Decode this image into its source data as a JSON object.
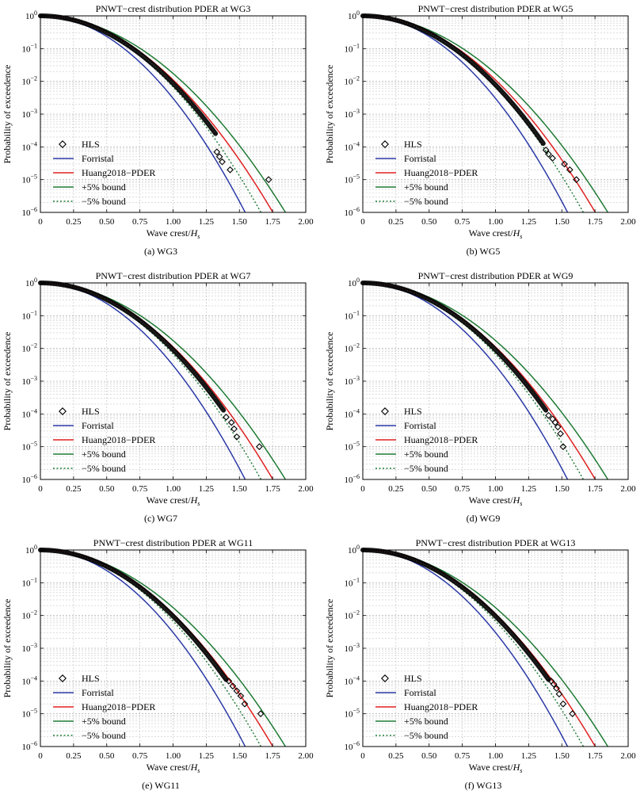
{
  "figure": {
    "ylabel": "Probability of exceedence",
    "xlabel_main": "Wave crest/",
    "xlabel_var": "H",
    "xlabel_sub": "s",
    "xlim": [
      0,
      2
    ],
    "ylim_exponents": [
      -6,
      0
    ],
    "x_ticks": [
      0,
      0.25,
      0.5,
      0.75,
      1.0,
      1.25,
      1.5,
      1.75,
      2.0
    ],
    "x_tick_labels": [
      "0",
      "0.25",
      "0.50",
      "0.75",
      "1.00",
      "1.25",
      "1.50",
      "1.75",
      "2.00"
    ],
    "y_ticks": [
      -6,
      -5,
      -4,
      -3,
      -2,
      -1,
      0
    ],
    "y_tick_base": "10",
    "grid": true,
    "legend_position": "lower-left",
    "legend": [
      {
        "key": "hls",
        "label": "HLS",
        "style": "diamond-marker",
        "color": "#000000"
      },
      {
        "key": "forristal",
        "label": "Forristal",
        "style": "solid",
        "color": "#2b3aa6"
      },
      {
        "key": "huang",
        "label": "Huang2018−PDER",
        "style": "solid",
        "color": "#e02020"
      },
      {
        "key": "plus5",
        "label": "+5% bound",
        "style": "solid",
        "color": "#1f7a34"
      },
      {
        "key": "minus5",
        "label": "−5% bound",
        "style": "dotted",
        "color": "#1f7a34"
      }
    ]
  },
  "chart_data": [
    {
      "type": "line",
      "title": "PNWT−crest distribution PDER at WG3",
      "caption": "(a) WG3",
      "xlabel": "Wave crest/Hs",
      "ylabel": "Probability of exceedence",
      "xlim": [
        0,
        2
      ],
      "ylim": [
        1e-06,
        1
      ],
      "y_scale": "log",
      "model": {
        "forristal_alpha": 5.8,
        "huang_alpha": 4.5,
        "plus5_alpha": 4.05,
        "minus5_alpha": 5.0
      },
      "hls_dense_end": 1.32,
      "hls_dense_alpha": 4.75,
      "hls_outliers": [
        [
          1.33,
          7e-05
        ],
        [
          1.35,
          5e-05
        ],
        [
          1.37,
          3.5e-05
        ],
        [
          1.43,
          2e-05
        ],
        [
          1.72,
          1e-05
        ]
      ]
    },
    {
      "type": "line",
      "title": "PNWT−crest distribution PDER at WG5",
      "caption": "(b) WG5",
      "xlabel": "Wave crest/Hs",
      "ylabel": "Probability of exceedence",
      "xlim": [
        0,
        2
      ],
      "ylim": [
        1e-06,
        1
      ],
      "y_scale": "log",
      "model": {
        "forristal_alpha": 5.8,
        "huang_alpha": 4.5,
        "plus5_alpha": 4.05,
        "minus5_alpha": 5.0
      },
      "hls_dense_end": 1.36,
      "hls_dense_alpha": 4.85,
      "hls_outliers": [
        [
          1.38,
          8e-05
        ],
        [
          1.4,
          6e-05
        ],
        [
          1.43,
          4.5e-05
        ],
        [
          1.52,
          3e-05
        ],
        [
          1.56,
          2e-05
        ],
        [
          1.61,
          1e-05
        ]
      ]
    },
    {
      "type": "line",
      "title": "PNWT−crest distribution PDER at WG7",
      "caption": "(c) WG7",
      "xlabel": "Wave crest/Hs",
      "ylabel": "Probability of exceedence",
      "xlim": [
        0,
        2
      ],
      "ylim": [
        1e-06,
        1
      ],
      "y_scale": "log",
      "model": {
        "forristal_alpha": 5.8,
        "huang_alpha": 4.5,
        "plus5_alpha": 4.05,
        "minus5_alpha": 5.0
      },
      "hls_dense_end": 1.38,
      "hls_dense_alpha": 4.7,
      "hls_outliers": [
        [
          1.4,
          8e-05
        ],
        [
          1.44,
          5.5e-05
        ],
        [
          1.46,
          3.5e-05
        ],
        [
          1.48,
          2e-05
        ],
        [
          1.65,
          1e-05
        ]
      ]
    },
    {
      "type": "line",
      "title": "PNWT−crest distribution PDER at WG9",
      "caption": "(d) WG9",
      "xlabel": "Wave crest/Hs",
      "ylabel": "Probability of exceedence",
      "xlim": [
        0,
        2
      ],
      "ylim": [
        1e-06,
        1
      ],
      "y_scale": "log",
      "model": {
        "forristal_alpha": 5.8,
        "huang_alpha": 4.5,
        "plus5_alpha": 4.05,
        "minus5_alpha": 5.0
      },
      "hls_dense_end": 1.38,
      "hls_dense_alpha": 4.7,
      "hls_outliers": [
        [
          1.4,
          9e-05
        ],
        [
          1.43,
          7e-05
        ],
        [
          1.45,
          5.5e-05
        ],
        [
          1.47,
          4e-05
        ],
        [
          1.49,
          2.5e-05
        ],
        [
          1.51,
          1e-05
        ]
      ]
    },
    {
      "type": "line",
      "title": "PNWT−crest distribution PDER at WG11",
      "caption": "(e) WG11",
      "xlabel": "Wave crest/Hs",
      "ylabel": "Probability of exceedence",
      "xlim": [
        0,
        2
      ],
      "ylim": [
        1e-06,
        1
      ],
      "y_scale": "log",
      "model": {
        "forristal_alpha": 5.8,
        "huang_alpha": 4.5,
        "plus5_alpha": 4.05,
        "minus5_alpha": 5.0
      },
      "hls_dense_end": 1.4,
      "hls_dense_alpha": 4.65,
      "hls_outliers": [
        [
          1.42,
          0.0001
        ],
        [
          1.45,
          7e-05
        ],
        [
          1.48,
          5e-05
        ],
        [
          1.51,
          3.5e-05
        ],
        [
          1.54,
          2e-05
        ],
        [
          1.66,
          1e-05
        ]
      ]
    },
    {
      "type": "line",
      "title": "PNWT−crest distribution PDER at WG13",
      "caption": "(f) WG13",
      "xlabel": "Wave crest/Hs",
      "ylabel": "Probability of exceedence",
      "xlim": [
        0,
        2
      ],
      "ylim": [
        1e-06,
        1
      ],
      "y_scale": "log",
      "model": {
        "forristal_alpha": 5.8,
        "huang_alpha": 4.5,
        "plus5_alpha": 4.05,
        "minus5_alpha": 5.0
      },
      "hls_dense_end": 1.4,
      "hls_dense_alpha": 4.65,
      "hls_outliers": [
        [
          1.42,
          0.0001
        ],
        [
          1.44,
          8e-05
        ],
        [
          1.46,
          6e-05
        ],
        [
          1.48,
          4e-05
        ],
        [
          1.51,
          2e-05
        ],
        [
          1.58,
          1e-05
        ]
      ]
    }
  ]
}
